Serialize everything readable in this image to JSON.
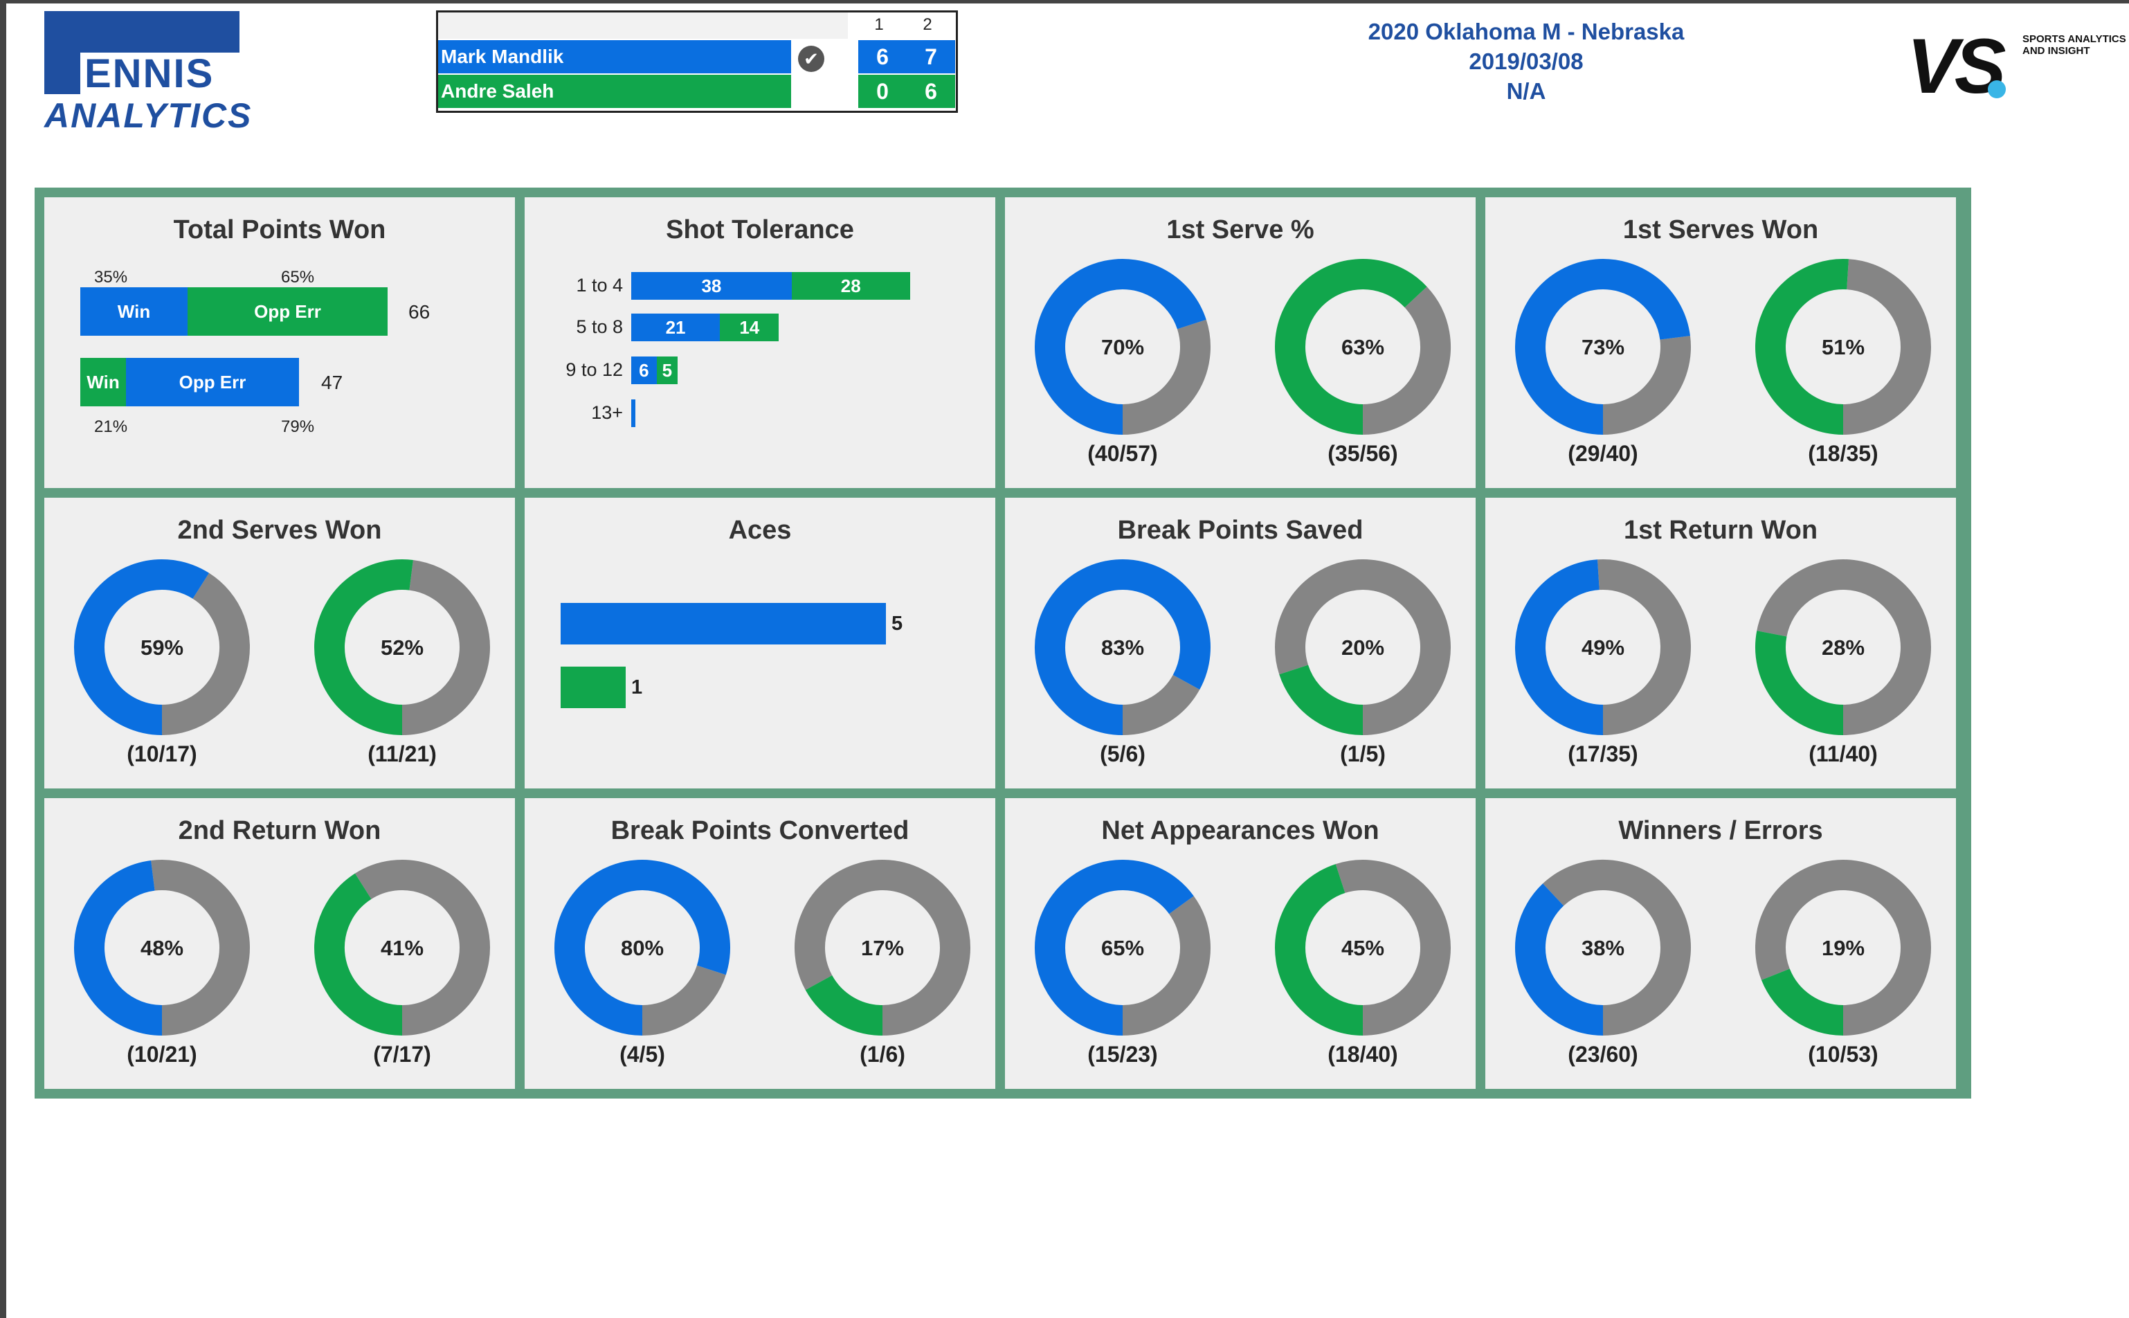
{
  "colors": {
    "player1": "#0a6fe0",
    "player2": "#11a64c",
    "rest": "#858585",
    "accent": "#1f4fa0"
  },
  "logo": {
    "line1": "ENNIS",
    "line2": "ANALYTICS"
  },
  "scoreboard": {
    "set_headers": [
      "1",
      "2"
    ],
    "players": [
      {
        "name": "Mark Mandlik",
        "sets": [
          "6",
          "7"
        ],
        "winner": true
      },
      {
        "name": "Andre Saleh",
        "sets": [
          "0",
          "6"
        ],
        "winner": false
      }
    ]
  },
  "match": {
    "title": "2020 Oklahoma M - Nebraska",
    "date": "2019/03/08",
    "location": "N/A"
  },
  "brand": {
    "mark": "VS",
    "tagline_1": "SPORTS ANALYTICS",
    "tagline_2": "AND INSIGHT"
  },
  "total_points": {
    "title": "Total Points Won",
    "p1": {
      "win_label": "Win",
      "opp_label": "Opp Err",
      "win_pct": "35%",
      "opp_pct": "65%",
      "total": "66",
      "win_share": 35
    },
    "p2": {
      "win_label": "Win",
      "opp_label": "Opp Err",
      "win_pct": "21%",
      "opp_pct": "79%",
      "total": "47",
      "win_share": 21
    }
  },
  "shot_tolerance": {
    "title": "Shot Tolerance",
    "rows": [
      {
        "label": "1 to 4",
        "p1": 38,
        "p2": 28
      },
      {
        "label": "5 to 8",
        "p1": 21,
        "p2": 14
      },
      {
        "label": "9 to 12",
        "p1": 6,
        "p2": 5
      },
      {
        "label": "13+",
        "p1": 1,
        "p2": 0
      }
    ]
  },
  "aces": {
    "title": "Aces",
    "p1": 5,
    "p2": 1
  },
  "chart_data": [
    {
      "type": "pie",
      "title": "1st Serve %",
      "series": [
        {
          "name": "Mark Mandlik",
          "value": 70,
          "label": "70%",
          "fraction": "(40/57)"
        },
        {
          "name": "Andre Saleh",
          "value": 63,
          "label": "63%",
          "fraction": "(35/56)"
        }
      ]
    },
    {
      "type": "pie",
      "title": "1st Serves Won",
      "series": [
        {
          "name": "Mark Mandlik",
          "value": 73,
          "label": "73%",
          "fraction": "(29/40)"
        },
        {
          "name": "Andre Saleh",
          "value": 51,
          "label": "51%",
          "fraction": "(18/35)"
        }
      ]
    },
    {
      "type": "pie",
      "title": "2nd Serves Won",
      "series": [
        {
          "name": "Mark Mandlik",
          "value": 59,
          "label": "59%",
          "fraction": "(10/17)"
        },
        {
          "name": "Andre Saleh",
          "value": 52,
          "label": "52%",
          "fraction": "(11/21)"
        }
      ]
    },
    {
      "type": "pie",
      "title": "Break Points Saved",
      "series": [
        {
          "name": "Mark Mandlik",
          "value": 83,
          "label": "83%",
          "fraction": "(5/6)"
        },
        {
          "name": "Andre Saleh",
          "value": 20,
          "label": "20%",
          "fraction": "(1/5)"
        }
      ]
    },
    {
      "type": "pie",
      "title": "1st Return Won",
      "series": [
        {
          "name": "Mark Mandlik",
          "value": 49,
          "label": "49%",
          "fraction": "(17/35)"
        },
        {
          "name": "Andre Saleh",
          "value": 28,
          "label": "28%",
          "fraction": "(11/40)"
        }
      ]
    },
    {
      "type": "pie",
      "title": "2nd Return Won",
      "series": [
        {
          "name": "Mark Mandlik",
          "value": 48,
          "label": "48%",
          "fraction": "(10/21)"
        },
        {
          "name": "Andre Saleh",
          "value": 41,
          "label": "41%",
          "fraction": "(7/17)"
        }
      ]
    },
    {
      "type": "pie",
      "title": "Break Points Converted",
      "series": [
        {
          "name": "Mark Mandlik",
          "value": 80,
          "label": "80%",
          "fraction": "(4/5)"
        },
        {
          "name": "Andre Saleh",
          "value": 17,
          "label": "17%",
          "fraction": "(1/6)"
        }
      ]
    },
    {
      "type": "pie",
      "title": "Net Appearances Won",
      "series": [
        {
          "name": "Mark Mandlik",
          "value": 65,
          "label": "65%",
          "fraction": "(15/23)"
        },
        {
          "name": "Andre Saleh",
          "value": 45,
          "label": "45%",
          "fraction": "(18/40)"
        }
      ]
    },
    {
      "type": "pie",
      "title": "Winners / Errors",
      "series": [
        {
          "name": "Mark Mandlik",
          "value": 38,
          "label": "38%",
          "fraction": "(23/60)"
        },
        {
          "name": "Andre Saleh",
          "value": 19,
          "label": "19%",
          "fraction": "(10/53)"
        }
      ]
    }
  ]
}
